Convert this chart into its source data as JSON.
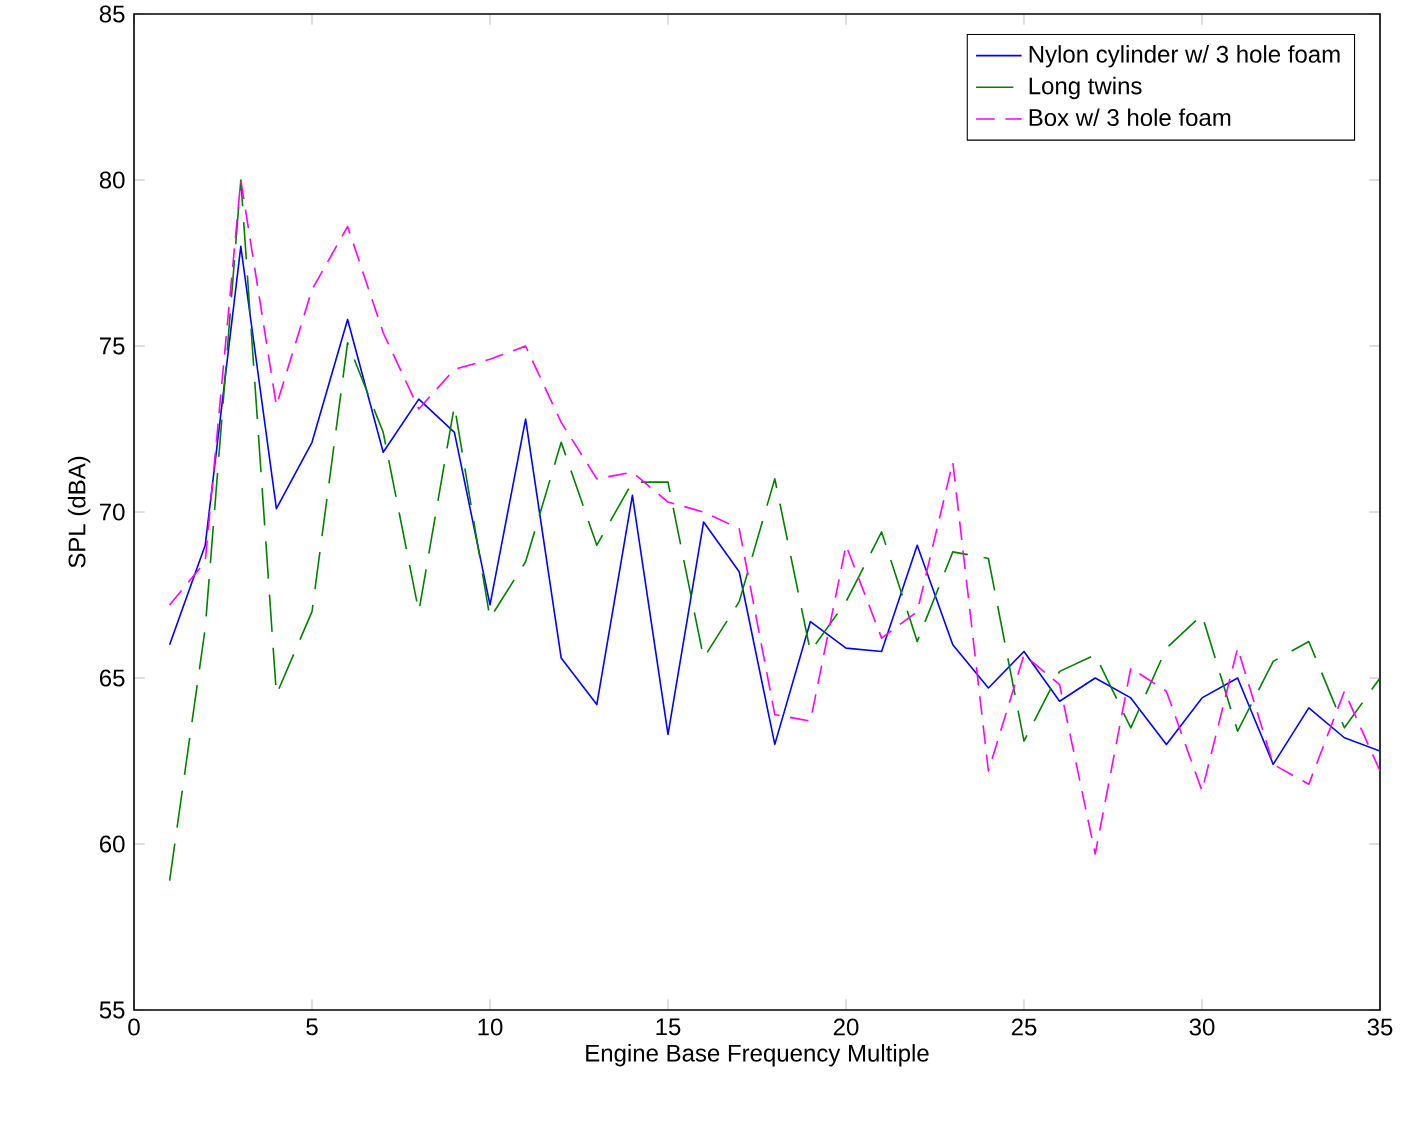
{
  "chart_data": {
    "type": "line",
    "xlabel": "Engine Base Frequency Multiple",
    "ylabel": "SPL (dBA)",
    "x": [
      1,
      2,
      3,
      4,
      5,
      6,
      7,
      8,
      9,
      10,
      11,
      12,
      13,
      14,
      15,
      16,
      17,
      18,
      19,
      20,
      21,
      22,
      23,
      24,
      25,
      26,
      27,
      28,
      29,
      30,
      31,
      32,
      33,
      34,
      35
    ],
    "series": [
      {
        "name": "Nylon cylinder w/ 3 hole foam",
        "color": "#0000ff",
        "line_style": "solid",
        "values": [
          66,
          69,
          78,
          70.1,
          72.1,
          75.8,
          71.8,
          73.4,
          72.4,
          67.2,
          72.8,
          65.6,
          64.2,
          70.5,
          63.3,
          69.7,
          68.2,
          63.0,
          66.7,
          65.9,
          65.8,
          69.0,
          66.0,
          64.7,
          65.8,
          64.3,
          65.0,
          64.4,
          63.0,
          64.4,
          65.0,
          62.4,
          64.1,
          63.2,
          62.8
        ]
      },
      {
        "name": "Long twins",
        "color": "#008000",
        "line_style": "dashed",
        "values": [
          58.9,
          66.5,
          80.0,
          64.5,
          67.0,
          75.1,
          72.4,
          67.0,
          73.2,
          66.8,
          68.5,
          72.1,
          69.0,
          70.9,
          70.9,
          65.6,
          67.3,
          71.0,
          65.8,
          67.3,
          69.4,
          66.1,
          68.8,
          68.6,
          63.1,
          65.2,
          65.7,
          63.5,
          65.9,
          66.9,
          63.4,
          65.5,
          66.1,
          63.5,
          65.0
        ]
      },
      {
        "name": "Box w/ 3 hole foam",
        "color": "#ff00ff",
        "line_style": "dashed",
        "values": [
          67.2,
          68.5,
          80.0,
          73.2,
          76.7,
          78.6,
          75.4,
          73.1,
          74.3,
          74.6,
          75.0,
          72.7,
          71.0,
          71.2,
          70.3,
          70.0,
          69.5,
          63.9,
          63.7,
          69.0,
          66.2,
          67.0,
          71.5,
          62.2,
          65.7,
          64.8,
          59.7,
          65.3,
          64.6,
          61.6,
          65.9,
          62.4,
          61.8,
          64.6,
          62.2
        ]
      }
    ],
    "xlim": [
      0,
      35
    ],
    "ylim": [
      55,
      85
    ],
    "xticks": [
      0,
      5,
      10,
      15,
      20,
      25,
      30,
      35
    ],
    "yticks": [
      55,
      60,
      65,
      70,
      75,
      80,
      85
    ],
    "grid": false,
    "legend": "top right",
    "marker": "none"
  }
}
